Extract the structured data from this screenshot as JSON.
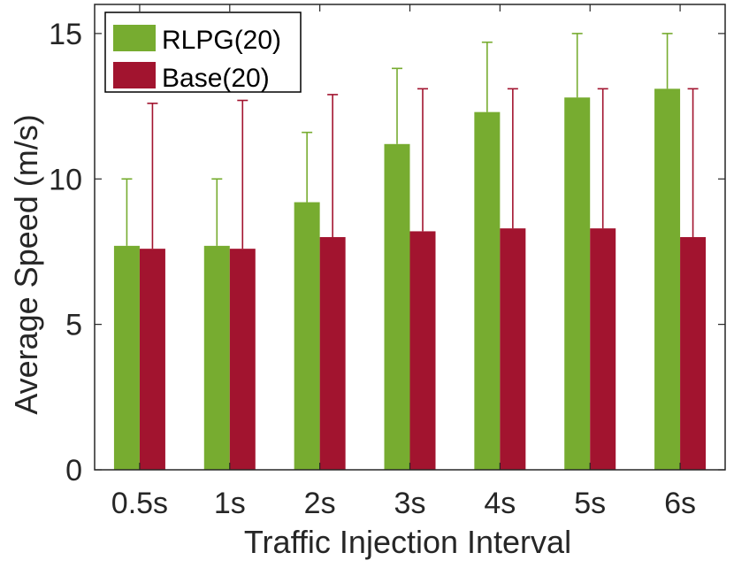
{
  "chart_data": {
    "type": "bar",
    "title": "",
    "xlabel": "Traffic Injection Interval",
    "ylabel": "Average Speed (m/s)",
    "categories": [
      "0.5s",
      "1s",
      "2s",
      "3s",
      "4s",
      "5s",
      "6s"
    ],
    "ylim": [
      0,
      16
    ],
    "yticks": [
      0,
      5,
      10,
      15
    ],
    "grid": false,
    "legend_position": "top-left",
    "series": [
      {
        "name": "RLPG(20)",
        "color": "#77ac30",
        "values": [
          7.7,
          7.7,
          9.2,
          11.2,
          12.3,
          12.8,
          13.1
        ],
        "error_upper": [
          10.0,
          10.0,
          11.6,
          13.8,
          14.7,
          15.0,
          15.0
        ]
      },
      {
        "name": "Base(20)",
        "color": "#a2142f",
        "values": [
          7.6,
          7.6,
          8.0,
          8.2,
          8.3,
          8.3,
          8.0
        ],
        "error_upper": [
          12.6,
          12.7,
          12.9,
          13.1,
          13.1,
          13.1,
          13.1
        ]
      }
    ]
  }
}
